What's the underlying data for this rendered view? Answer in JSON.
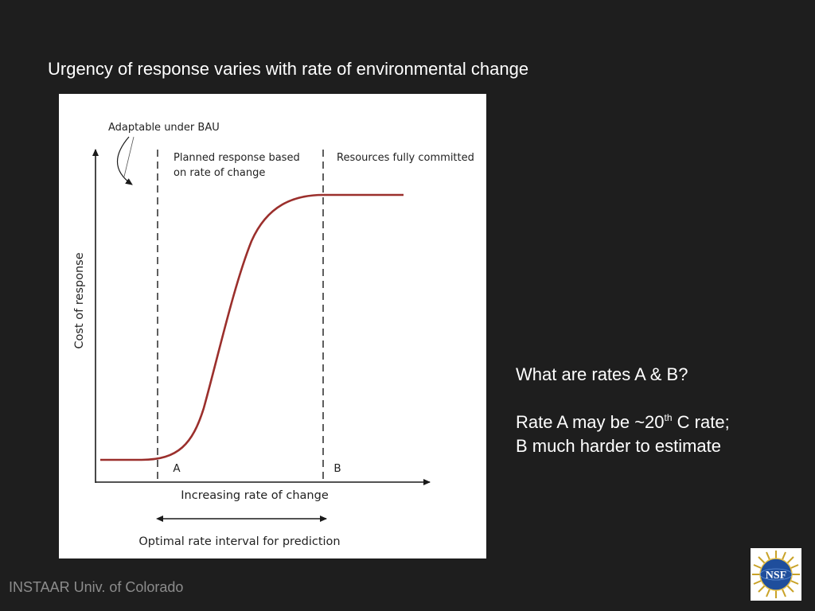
{
  "slide": {
    "title": "Urgency of response varies with rate of environmental change",
    "footer": "INSTAAR Univ. of Colorado"
  },
  "diagram": {
    "label_adaptable": "Adaptable under BAU",
    "label_planned_line1": "Planned response based",
    "label_planned_line2": "on rate of change",
    "label_resources": "Resources fully committed",
    "y_axis_label": "Cost of response",
    "x_axis_label": "Increasing rate of change",
    "marker_a": "A",
    "marker_b": "B",
    "interval_label": "Optimal rate interval for prediction",
    "curve_color": "#9b2f2c"
  },
  "notes": {
    "question": "What are rates A & B?",
    "line1_prefix": "Rate A may be ~20",
    "line1_sup": "th",
    "line1_suffix": " C rate;",
    "line2": "B much harder to estimate"
  },
  "logo": {
    "text": "NSF",
    "icon": "nsf-logo"
  }
}
